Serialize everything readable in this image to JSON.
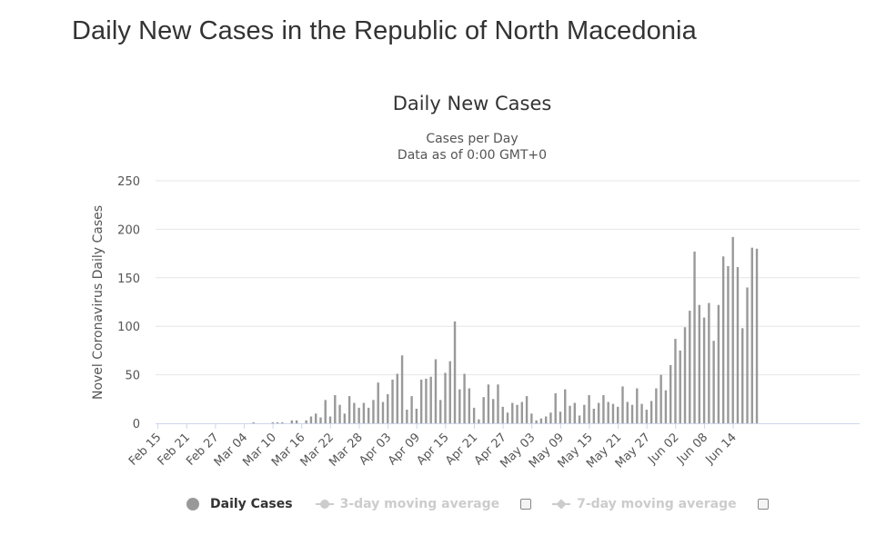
{
  "page": {
    "title": "Daily New Cases in the Republic of North Macedonia"
  },
  "legend": {
    "daily_cases": "Daily Cases",
    "ma3": "3-day moving average",
    "ma7": "7-day moving average"
  },
  "colors": {
    "bar": "#999999",
    "grid": "#e6e6e6",
    "text": "#333333",
    "legend_hidden": "#cccccc"
  },
  "chart_data": {
    "type": "bar",
    "title": "Daily New Cases",
    "subtitle": [
      "Cases per Day",
      "Data as of 0:00 GMT+0"
    ],
    "xlabel": "",
    "ylabel": "Novel Coronavirus Daily Cases",
    "ylim": [
      0,
      250
    ],
    "yticks": [
      0,
      50,
      100,
      150,
      200,
      250
    ],
    "start_date": "Feb 15",
    "xtick_labels": [
      "Feb 15",
      "Feb 21",
      "Feb 27",
      "Mar 04",
      "Mar 10",
      "Mar 16",
      "Mar 22",
      "Mar 28",
      "Apr 03",
      "Apr 09",
      "Apr 15",
      "Apr 21",
      "Apr 27",
      "May 03",
      "May 09",
      "May 15",
      "May 21",
      "May 27",
      "Jun 02",
      "Jun 08",
      "Jun 14"
    ],
    "xtick_interval_days": 6,
    "series": [
      {
        "name": "Daily Cases",
        "values": [
          0,
          0,
          0,
          0,
          0,
          0,
          0,
          0,
          0,
          0,
          0,
          0,
          0,
          0,
          0,
          0,
          0,
          0,
          0,
          0,
          1,
          0,
          0,
          0,
          1,
          1,
          1,
          0,
          3,
          3,
          0,
          3,
          7,
          10,
          6,
          24,
          7,
          29,
          19,
          10,
          28,
          21,
          16,
          21,
          16,
          24,
          42,
          22,
          30,
          45,
          51,
          70,
          14,
          28,
          15,
          45,
          46,
          48,
          66,
          24,
          52,
          64,
          105,
          35,
          51,
          36,
          16,
          4,
          27,
          40,
          25,
          40,
          17,
          11,
          21,
          19,
          22,
          28,
          10,
          3,
          5,
          7,
          11,
          31,
          12,
          35,
          18,
          21,
          8,
          19,
          29,
          15,
          21,
          29,
          22,
          20,
          17,
          38,
          22,
          19,
          36,
          20,
          14,
          23,
          36,
          50,
          34,
          60,
          87,
          75,
          99,
          116,
          177,
          122,
          109,
          124,
          85,
          122,
          172,
          162,
          192,
          161,
          98,
          140,
          181,
          180
        ]
      }
    ]
  }
}
